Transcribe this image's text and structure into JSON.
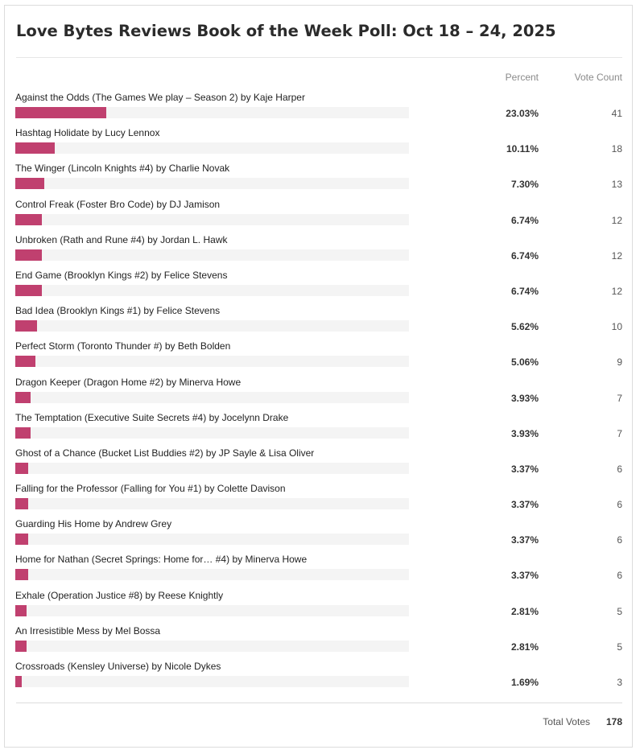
{
  "poll": {
    "title": "Love Bytes Reviews Book of the Week Poll: Oct 18 – 24, 2025",
    "col_percent": "Percent",
    "col_votes": "Vote Count",
    "total_label": "Total Votes",
    "total_value": "178",
    "bar_color": "#c0406f"
  },
  "chart_data": {
    "type": "bar",
    "orientation": "horizontal",
    "title": "Love Bytes Reviews Book of the Week Poll: Oct 18 – 24, 2025",
    "xlim": [
      0,
      100
    ],
    "grid": false,
    "categories": [
      "Against the Odds (The Games We play – Season 2) by Kaje Harper",
      "Hashtag Holidate by Lucy Lennox",
      "The Winger (Lincoln Knights #4) by Charlie Novak",
      "Control Freak (Foster Bro Code) by DJ Jamison",
      "Unbroken (Rath and Rune #4) by Jordan L. Hawk",
      "End Game (Brooklyn Kings #2) by Felice Stevens",
      "Bad Idea (Brooklyn Kings #1) by Felice Stevens",
      "Perfect Storm (Toronto Thunder #) by Beth Bolden",
      "Dragon Keeper (Dragon Home #2) by Minerva Howe",
      "The Temptation (Executive Suite Secrets #4) by Jocelynn Drake",
      "Ghost of a Chance (Bucket List Buddies #2) by JP Sayle & Lisa Oliver",
      "Falling for the Professor (Falling for You #1) by Colette Davison",
      "Guarding His Home by Andrew Grey",
      "Home for Nathan (Secret Springs: Home for… #4) by Minerva Howe",
      "Exhale (Operation Justice #8) by Reese Knightly",
      "An Irresistible Mess by Mel Bossa",
      "Crossroads (Kensley Universe) by Nicole Dykes"
    ],
    "values": [
      23.03,
      10.11,
      7.3,
      6.74,
      6.74,
      6.74,
      5.62,
      5.06,
      3.93,
      3.93,
      3.37,
      3.37,
      3.37,
      3.37,
      2.81,
      2.81,
      1.69
    ],
    "percent_labels": [
      "23.03%",
      "10.11%",
      "7.30%",
      "6.74%",
      "6.74%",
      "6.74%",
      "5.62%",
      "5.06%",
      "3.93%",
      "3.93%",
      "3.37%",
      "3.37%",
      "3.37%",
      "3.37%",
      "2.81%",
      "2.81%",
      "1.69%"
    ],
    "votes": [
      "41",
      "18",
      "13",
      "12",
      "12",
      "12",
      "10",
      "9",
      "7",
      "7",
      "6",
      "6",
      "6",
      "6",
      "5",
      "5",
      "3"
    ]
  }
}
